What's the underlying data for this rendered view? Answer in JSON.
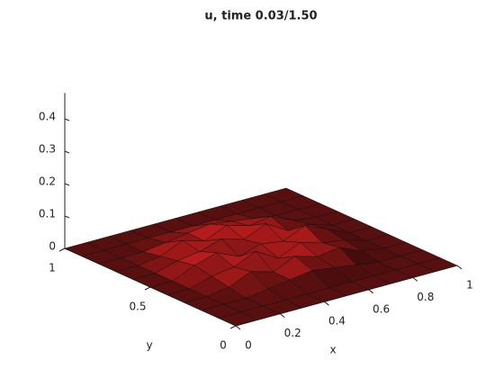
{
  "chart_data": {
    "type": "surface",
    "title": "u, time 0.03/1.50",
    "x_label": "x",
    "y_label": "y",
    "x": [
      0,
      0.1,
      0.2,
      0.3,
      0.4,
      0.5,
      0.6,
      0.7,
      0.8,
      0.9,
      1
    ],
    "y": [
      0,
      0.1,
      0.2,
      0.3,
      0.4,
      0.5,
      0.6,
      0.7,
      0.8,
      0.9,
      1
    ],
    "z": [
      [
        0,
        0,
        0,
        0,
        0,
        0,
        0,
        0,
        0,
        0,
        0
      ],
      [
        0,
        0,
        0,
        0,
        0,
        0,
        0,
        0,
        0,
        0,
        0
      ],
      [
        0,
        0,
        0,
        0.01,
        0.02,
        0.03,
        0.02,
        0.01,
        0,
        0,
        0
      ],
      [
        0,
        0,
        0.01,
        0.04,
        0.02,
        0.05,
        0.03,
        0.04,
        0.01,
        0,
        0
      ],
      [
        0,
        0,
        0.02,
        0.03,
        0.06,
        0.02,
        0.05,
        0.03,
        0.02,
        0,
        0
      ],
      [
        0,
        0,
        0.03,
        0.05,
        0.02,
        0.04,
        0.03,
        0.06,
        0.03,
        0,
        0
      ],
      [
        0,
        0,
        0.02,
        0.03,
        0.05,
        0.03,
        0.06,
        0.02,
        0.02,
        0,
        0
      ],
      [
        0,
        0,
        0.01,
        0.04,
        0.02,
        0.05,
        0.03,
        0.04,
        0.01,
        0,
        0
      ],
      [
        0,
        0,
        0,
        0.01,
        0.02,
        0.03,
        0.02,
        0.01,
        0,
        0,
        0
      ],
      [
        0,
        0,
        0,
        0,
        0,
        0,
        0,
        0,
        0,
        0,
        0
      ],
      [
        0,
        0,
        0,
        0,
        0,
        0,
        0,
        0,
        0,
        0,
        0
      ]
    ],
    "color": "#9a1c1c",
    "xlim": [
      0,
      1
    ],
    "ylim": [
      0,
      1
    ],
    "zlim": [
      0,
      0.48
    ],
    "xticks": [
      0,
      0.2,
      0.4,
      0.6,
      0.8,
      1
    ],
    "yticks": [
      0,
      0.5,
      1
    ],
    "zticks": [
      0,
      0.1,
      0.2,
      0.3,
      0.4
    ]
  }
}
